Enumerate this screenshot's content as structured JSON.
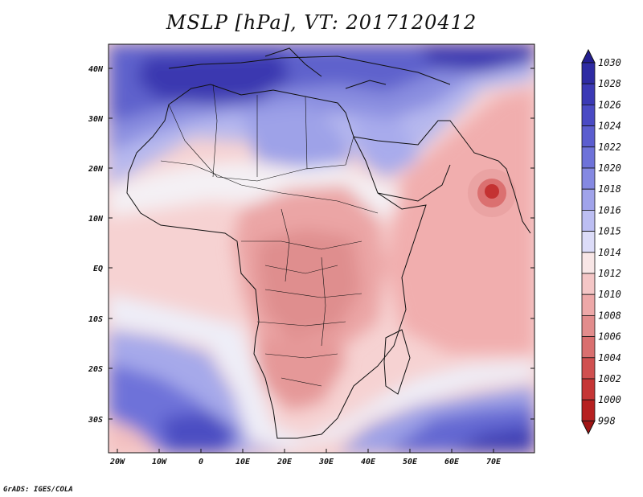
{
  "title": "MSLP [hPa], VT: 2017120412",
  "credit": "GrADS: IGES/COLA",
  "map": {
    "variable": "Mean sea level pressure",
    "units": "hPa",
    "valid_time": "2017120412",
    "lon_range": [
      -22,
      80
    ],
    "lat_range": [
      -36,
      46
    ],
    "lon_ticks": [
      "20W",
      "10W",
      "0",
      "10E",
      "20E",
      "30E",
      "40E",
      "50E",
      "60E",
      "70E"
    ],
    "lat_ticks": [
      "40N",
      "30N",
      "20N",
      "10N",
      "EQ",
      "10S",
      "20S",
      "30S"
    ],
    "colorbar": {
      "levels": [
        "1030",
        "1028",
        "1026",
        "1024",
        "1022",
        "1020",
        "1018",
        "1016",
        "1015",
        "1014",
        "1012",
        "1010",
        "1008",
        "1006",
        "1004",
        "1002",
        "1000",
        "998"
      ],
      "colors": [
        "#231e91",
        "#2e2ba3",
        "#3b39b5",
        "#4a4ac4",
        "#5b5dcf",
        "#6e72d9",
        "#8589e2",
        "#a0a3ea",
        "#bcbef2",
        "#dcdcf8",
        "#f8e6e6",
        "#f4c6c6",
        "#eda8a8",
        "#e28c8c",
        "#d96f6f",
        "#d05050",
        "#c53535",
        "#b62020",
        "#a01414"
      ]
    }
  }
}
